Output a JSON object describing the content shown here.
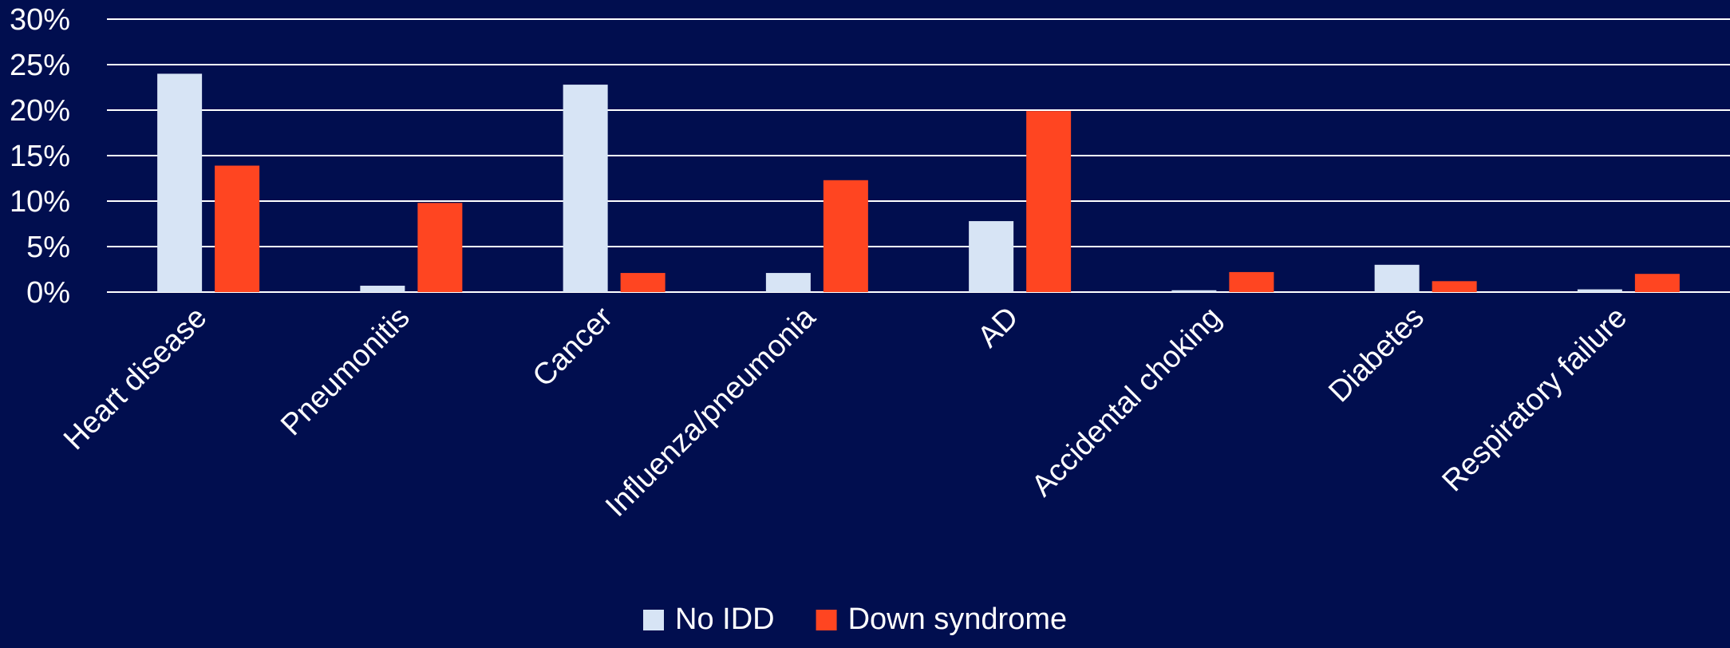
{
  "chart_data": {
    "type": "bar",
    "title": "",
    "xlabel": "",
    "ylabel": "",
    "categories": [
      "Heart disease",
      "Pneumonitis",
      "Cancer",
      "Influenza/pneumonia",
      "AD",
      "Accidental choking",
      "Diabetes",
      "Respiratory failure"
    ],
    "series": [
      {
        "name": "No IDD",
        "color": "#D7E4F5",
        "values": [
          24.0,
          0.7,
          22.8,
          2.1,
          7.8,
          0.2,
          3.0,
          0.3
        ]
      },
      {
        "name": "Down syndrome",
        "color": "#FF4521",
        "values": [
          13.9,
          9.8,
          2.1,
          12.3,
          19.9,
          2.2,
          1.2,
          2.0
        ]
      }
    ],
    "ylim": [
      0,
      30
    ],
    "y_ticks": [
      0,
      5,
      10,
      15,
      20,
      25,
      30
    ],
    "y_tick_labels": [
      "0%",
      "5%",
      "10%",
      "15%",
      "20%",
      "25%",
      "30%"
    ],
    "grid": true,
    "legend_position": "bottom-center",
    "background_color": "#010E4F",
    "text_color": "#FFFFFF",
    "gridline_color": "#FFFFFF"
  }
}
